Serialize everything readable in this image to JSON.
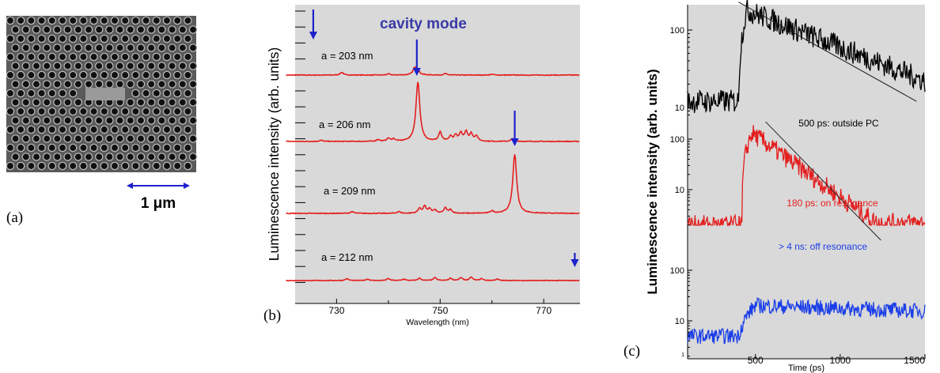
{
  "panel_a": {
    "label": "(a)",
    "scale_bar_label": "1 μm",
    "image_description": "SEM image of photonic crystal with L3-type defect cavity"
  },
  "chart_data": [
    {
      "panel": "b",
      "type": "line",
      "panel_label": "(b)",
      "title": "",
      "annotation": "cavity mode",
      "xlabel": "Wavelength (nm)",
      "ylabel": "Luminescence intensity (arb. units)",
      "xlim": [
        722,
        777
      ],
      "xticks": [
        730,
        750,
        770
      ],
      "grid": false,
      "series": [
        {
          "label": "a = 203 nm",
          "peak_nm": 745.5,
          "peak_height": 0.12,
          "minor_peaks": [
            [
              731,
              0.05
            ],
            [
              745,
              0.08
            ],
            [
              740,
              0.02
            ],
            [
              751,
              0.025
            ],
            [
              760,
              0.015
            ]
          ]
        },
        {
          "label": "a = 206 nm",
          "peak_nm": 745.7,
          "peak_height": 1.0,
          "minor_peaks": [
            [
              727,
              0.02
            ],
            [
              738,
              0.03
            ],
            [
              740,
              0.05
            ],
            [
              741,
              0.04
            ],
            [
              750,
              0.15
            ],
            [
              752,
              0.08
            ],
            [
              753,
              0.1
            ],
            [
              754,
              0.13
            ],
            [
              755,
              0.16
            ],
            [
              756,
              0.12
            ],
            [
              757,
              0.09
            ],
            [
              764,
              0.05
            ]
          ]
        },
        {
          "label": "a = 209 nm",
          "peak_nm": 764.4,
          "peak_height": 1.0,
          "minor_peaks": [
            [
              733,
              0.03
            ],
            [
              742,
              0.03
            ],
            [
              746,
              0.08
            ],
            [
              747,
              0.12
            ],
            [
              748,
              0.07
            ],
            [
              749,
              0.05
            ],
            [
              751,
              0.09
            ],
            [
              752,
              0.06
            ],
            [
              760,
              0.04
            ]
          ]
        },
        {
          "label": "a = 212 nm",
          "peak_nm": 775.8,
          "peak_height": 0.0,
          "minor_peaks": [
            [
              732,
              0.04
            ],
            [
              736,
              0.03
            ],
            [
              740,
              0.04
            ],
            [
              743,
              0.03
            ],
            [
              746,
              0.05
            ],
            [
              749,
              0.06
            ],
            [
              752,
              0.05
            ],
            [
              754,
              0.06
            ],
            [
              756,
              0.07
            ],
            [
              758,
              0.04
            ],
            [
              761,
              0.03
            ]
          ]
        }
      ],
      "arrows_nm": [
        725.5,
        745.5,
        764.4,
        776
      ],
      "colors": {
        "trace": "#e41e1e",
        "arrow": "#1c22cc",
        "background": "#d9d9d9",
        "annotation": "#3a3aa6"
      }
    },
    {
      "panel": "c",
      "type": "line",
      "panel_label": "(c)",
      "title": "",
      "xlabel": "Time (ps)",
      "ylabel": "Luminescence intensity (arb. units)",
      "xlim": [
        100,
        1500
      ],
      "xticks": [
        500,
        1000,
        1500
      ],
      "yscale": "log",
      "grid": false,
      "subplots": [
        {
          "label": "500 ps: outside PC",
          "color": "#000000",
          "yticks": [
            10,
            100
          ],
          "ylim": [
            1,
            400
          ],
          "baseline": 12,
          "rise_ps": 400,
          "peak_ps": 450,
          "peak": 180,
          "decay_ps": 500,
          "noise": 0.35,
          "fit": {
            "x": [
              400,
              1450
            ],
            "y": [
              230,
              12
            ]
          }
        },
        {
          "label": "180 ps: on resonance",
          "color": "#e41e1e",
          "yticks": [
            10,
            100
          ],
          "ylim": [
            1,
            400
          ],
          "baseline": 2,
          "rise_ps": 420,
          "peak_ps": 480,
          "peak": 130,
          "decay_ps": 180,
          "noise": 0.45,
          "fit": {
            "x": [
              560,
              1240
            ],
            "y": [
              220,
              1
            ]
          }
        },
        {
          "label": "> 4 ns: off resonance",
          "color": "#1a3ee8",
          "yticks": [
            10,
            100
          ],
          "ylim": [
            1,
            100
          ],
          "baseline": 5,
          "rise_ps": 400,
          "peak_ps": 500,
          "peak": 20,
          "decay_ps": 4000,
          "noise": 0.35,
          "fit": null
        }
      ],
      "decimal_tick_label": "1"
    }
  ]
}
